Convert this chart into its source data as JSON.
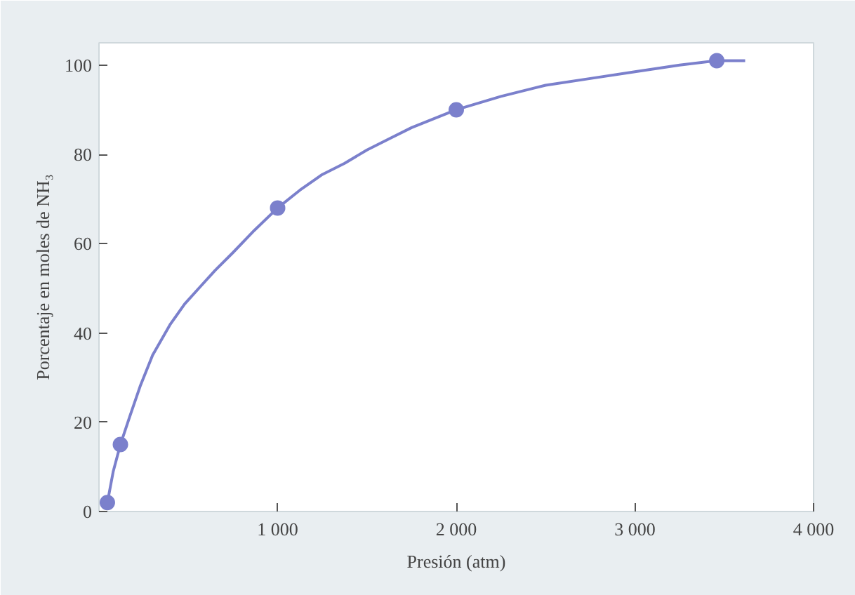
{
  "chart_data": {
    "type": "line",
    "xlabel": "Presión (atm)",
    "ylabel": "Porcentaje en moles de NH₃",
    "xlim": [
      0,
      4000
    ],
    "ylim": [
      0,
      105
    ],
    "xticks": [
      {
        "value": 1000,
        "label": "1 000"
      },
      {
        "value": 2000,
        "label": "2 000"
      },
      {
        "value": 3000,
        "label": "3 000"
      },
      {
        "value": 4000,
        "label": "4 000"
      }
    ],
    "yticks": [
      0,
      20,
      40,
      60,
      80,
      100
    ],
    "grid": false,
    "series": [
      {
        "color": "#7b80cc",
        "marker": "none",
        "x": [
          47,
          80,
          120,
          170,
          230,
          300,
          400,
          480,
          570,
          650,
          750,
          870,
          1000,
          1125,
          1250,
          1375,
          1500,
          1625,
          1750,
          1875,
          2000,
          2250,
          2500,
          2750,
          3000,
          3250,
          3458,
          3617
        ],
        "values": [
          2,
          9,
          15,
          21,
          28,
          35,
          42,
          46.5,
          50.5,
          54,
          58,
          63,
          68,
          72,
          75.5,
          78,
          81,
          83.5,
          86,
          88,
          90,
          93,
          95.5,
          97,
          98.5,
          100,
          101,
          101
        ]
      },
      {
        "type": "scatter",
        "color": "#7b80cc",
        "marker": "circle",
        "x": [
          47,
          120,
          1000,
          2000,
          3458
        ],
        "values": [
          2,
          15,
          68,
          90,
          101
        ]
      }
    ]
  }
}
